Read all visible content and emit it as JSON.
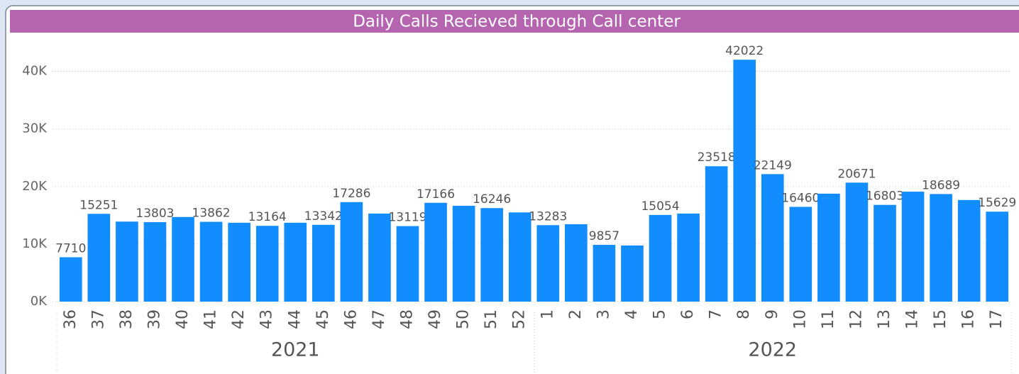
{
  "chart_data": {
    "type": "bar",
    "title": "Daily Calls Recieved through Call center",
    "categories": [
      "36",
      "37",
      "38",
      "39",
      "40",
      "41",
      "42",
      "43",
      "44",
      "45",
      "46",
      "47",
      "48",
      "49",
      "50",
      "51",
      "52",
      "1",
      "2",
      "3",
      "4",
      "5",
      "6",
      "7",
      "8",
      "9",
      "10",
      "11",
      "12",
      "13",
      "14",
      "15",
      "16",
      "17"
    ],
    "years": [
      "2021",
      "2021",
      "2021",
      "2021",
      "2021",
      "2021",
      "2021",
      "2021",
      "2021",
      "2021",
      "2021",
      "2021",
      "2021",
      "2021",
      "2021",
      "2021",
      "2021",
      "2022",
      "2022",
      "2022",
      "2022",
      "2022",
      "2022",
      "2022",
      "2022",
      "2022",
      "2022",
      "2022",
      "2022",
      "2022",
      "2022",
      "2022",
      "2022",
      "2022"
    ],
    "values": [
      7710,
      15251,
      13900,
      13803,
      14700,
      13862,
      13700,
      13164,
      13700,
      13342,
      17286,
      15300,
      13119,
      17166,
      16650,
      16246,
      15500,
      13283,
      13450,
      9857,
      9750,
      15054,
      15300,
      23518,
      42022,
      22149,
      16460,
      18750,
      20671,
      16803,
      19100,
      18689,
      17650,
      15629
    ],
    "value_labels": [
      "7710",
      "15251",
      null,
      "13803",
      null,
      "13862",
      null,
      "13164",
      null,
      "13342",
      "17286",
      null,
      "13119",
      "17166",
      null,
      "16246",
      null,
      "13283",
      null,
      "9857",
      null,
      "15054",
      null,
      "23518",
      "42022",
      "22149",
      "16460",
      null,
      "20671",
      "16803",
      null,
      "18689",
      null,
      "15629"
    ],
    "color": "#118dff",
    "ylim": [
      0,
      45000
    ],
    "yticks": [
      {
        "value": 0,
        "label": "0K"
      },
      {
        "value": 10000,
        "label": "10K"
      },
      {
        "value": 20000,
        "label": "20K"
      },
      {
        "value": 30000,
        "label": "30K"
      },
      {
        "value": 40000,
        "label": "40K"
      }
    ],
    "grid": true
  }
}
